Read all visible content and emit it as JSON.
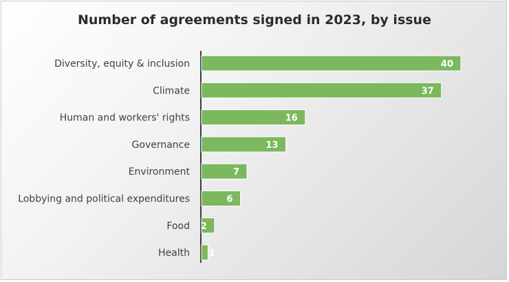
{
  "chart_data": {
    "type": "bar",
    "orientation": "horizontal",
    "title": "Number of agreements signed in 2023, by issue",
    "xlabel": "",
    "ylabel": "",
    "categories": [
      "Diversity, equity & inclusion",
      "Climate",
      "Human and workers' rights",
      "Governance",
      "Environment",
      "Lobbying and political expenditures",
      "Food",
      "Health"
    ],
    "values": [
      40,
      37,
      16,
      13,
      7,
      6,
      2,
      1
    ],
    "xlim": [
      0,
      40
    ],
    "grid": false,
    "legend": "none",
    "data_labels": true,
    "bar_color": "#7cb85e",
    "bar_edge_color": "#ffffff"
  }
}
